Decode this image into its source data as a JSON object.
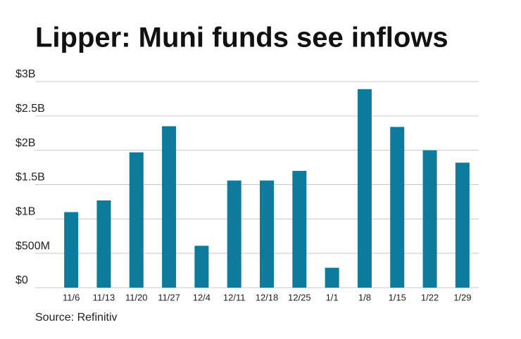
{
  "chart_data": {
    "type": "bar",
    "title": "Lipper: Muni funds see inflows",
    "source": "Source: Refinitiv",
    "categories": [
      "11/6",
      "11/13",
      "11/20",
      "11/27",
      "12/4",
      "12/11",
      "12/18",
      "12/25",
      "1/1",
      "1/8",
      "1/15",
      "1/22",
      "1/29"
    ],
    "values": [
      1.1,
      1.27,
      1.97,
      2.35,
      0.61,
      1.56,
      1.56,
      1.7,
      0.29,
      2.89,
      2.34,
      2.0,
      1.82
    ],
    "color": "#0f7b9c",
    "ylim": [
      0,
      3
    ],
    "yticks": [
      {
        "value": 0,
        "label": "$0"
      },
      {
        "value": 0.5,
        "label": "$500M"
      },
      {
        "value": 1,
        "label": "$1B"
      },
      {
        "value": 1.5,
        "label": "$1.5B"
      },
      {
        "value": 2,
        "label": "$2B"
      },
      {
        "value": 2.5,
        "label": "$2.5B"
      },
      {
        "value": 3,
        "label": "$3B"
      }
    ],
    "grid": true
  }
}
